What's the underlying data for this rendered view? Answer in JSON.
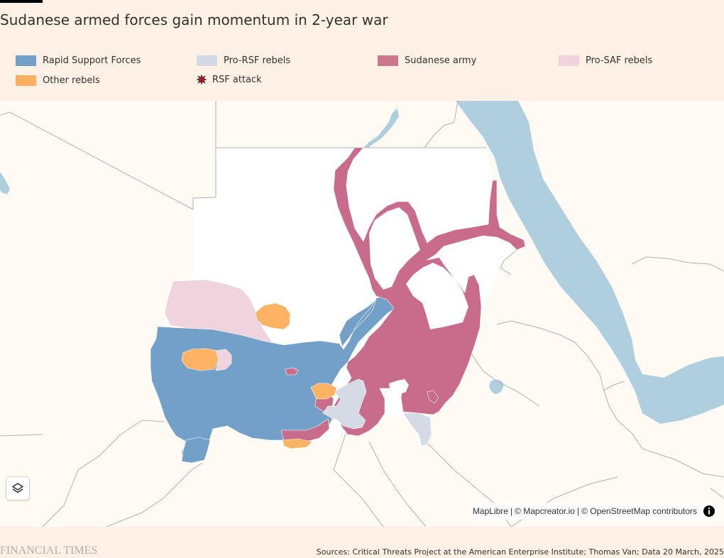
{
  "header": {
    "title": "Sudanese armed forces gain momentum in 2-year war"
  },
  "legend": {
    "items": [
      {
        "label": "Rapid Support Forces",
        "color": "#739fc8",
        "icon": "swatch"
      },
      {
        "label": "Pro-RSF rebels",
        "color": "#d3dae4",
        "icon": "swatch"
      },
      {
        "label": "Sudanese army",
        "color": "#c9798a",
        "icon": "swatch"
      },
      {
        "label": "Pro-SAF rebels",
        "color": "#f0d2dc",
        "icon": "swatch"
      },
      {
        "label": "Other rebels",
        "color": "#fcb05f",
        "icon": "swatch"
      },
      {
        "label": "RSF attack",
        "color": "#c0141d",
        "icon": "rsf-attack-icon"
      }
    ]
  },
  "map": {
    "colors": {
      "land": "#fffaf4",
      "sudan_land": "#ffffff",
      "water": "#afcede",
      "border": "#b4b1ad",
      "rsf": "#73a0c9",
      "pro_rsf": "#d5dbe4",
      "saf": "#c96c8b",
      "pro_saf": "#efd3dd",
      "other": "#fdb264"
    },
    "controls": {
      "layers_icon": "layers-icon",
      "info_icon": "info-icon"
    },
    "attribution": {
      "maplibre": "MapLibre",
      "mapcreator": "© Mapcreator.io",
      "osm": "© OpenStreetMap contributors",
      "separator": "|"
    }
  },
  "footer": {
    "logo_text": "FINANCIAL TIMES",
    "sources": "Sources: Critical Threats Project at the American Enterprise Institute; Thomas Van; Data 20 March, 2025"
  }
}
